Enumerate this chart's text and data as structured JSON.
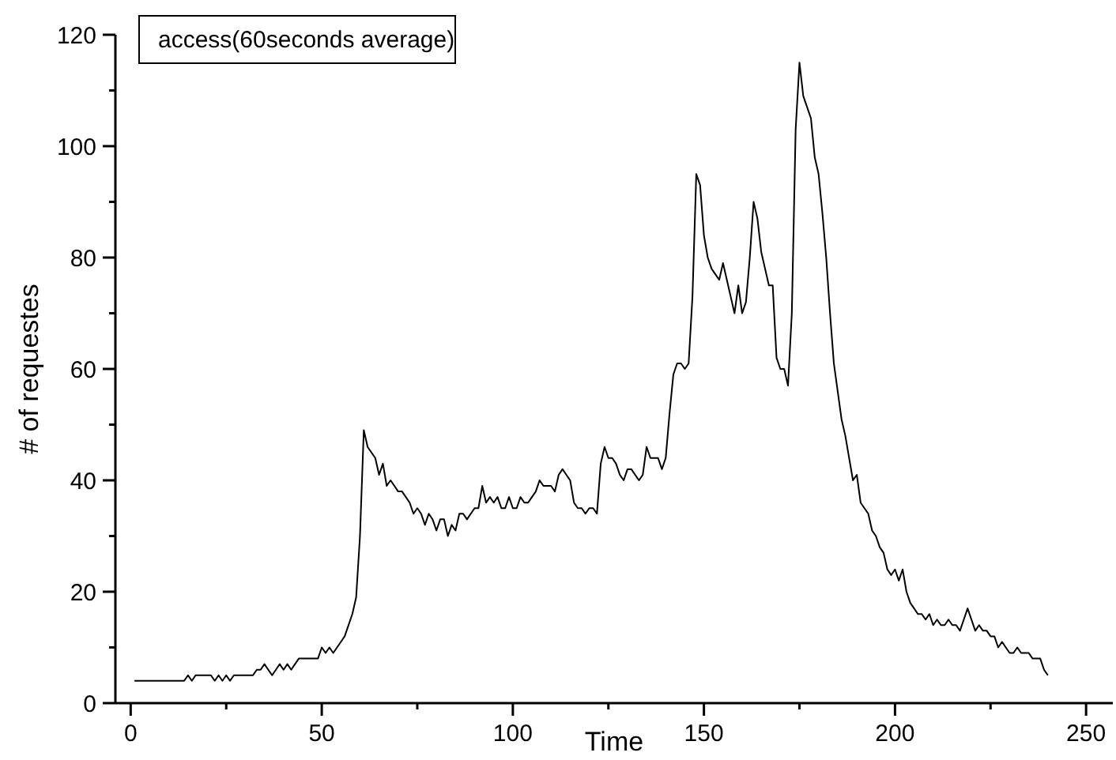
{
  "chart_data": {
    "type": "line",
    "xlabel": "Time",
    "ylabel": "# of requestes",
    "legend": "top left",
    "marker": "none",
    "line_style": "solid",
    "grid": false,
    "xlim": [
      -4,
      257
    ],
    "ylim": [
      0,
      120
    ],
    "xticks": [
      0,
      {
        "value": 25,
        "label": null
      },
      50,
      {
        "value": 75,
        "label": null
      },
      100,
      {
        "value": 125,
        "label": null
      },
      150,
      {
        "value": 175,
        "label": null
      },
      200,
      {
        "value": 225,
        "label": null
      },
      250
    ],
    "yticks": [
      0,
      {
        "value": 10,
        "label": null
      },
      20,
      {
        "value": 30,
        "label": null
      },
      40,
      {
        "value": 50,
        "label": null
      },
      60,
      {
        "value": 70,
        "label": null
      },
      80,
      {
        "value": 90,
        "label": null
      },
      100,
      {
        "value": 110,
        "label": null
      },
      120
    ],
    "series": [
      {
        "name": "access(60seconds average)",
        "color": "#000000",
        "x": [
          1,
          14,
          15,
          16,
          17,
          21,
          22,
          23,
          24,
          25,
          26,
          27,
          32,
          33,
          34,
          35,
          36,
          37,
          38,
          39,
          40,
          41,
          42,
          43,
          44,
          45,
          49,
          50,
          51,
          52,
          53,
          55,
          56,
          57,
          58,
          59,
          60,
          61,
          62,
          63,
          64,
          65,
          66,
          67,
          68,
          69,
          70,
          71,
          72,
          73,
          74,
          75,
          76,
          77,
          78,
          79,
          80,
          81,
          82,
          83,
          84,
          85,
          86,
          87,
          88,
          89,
          90,
          91,
          92,
          93,
          94,
          95,
          96,
          97,
          98,
          99,
          100,
          101,
          102,
          103,
          104,
          105,
          106,
          107,
          108,
          109,
          110,
          111,
          112,
          113,
          114,
          115,
          116,
          117,
          118,
          119,
          120,
          121,
          122,
          123,
          124,
          125,
          126,
          127,
          128,
          129,
          130,
          131,
          132,
          133,
          134,
          135,
          136,
          137,
          138,
          139,
          140,
          141,
          142,
          143,
          144,
          145,
          146,
          147,
          148,
          149,
          150,
          151,
          152,
          153,
          154,
          155,
          156,
          157,
          158,
          159,
          160,
          161,
          162,
          163,
          164,
          165,
          166,
          167,
          168,
          169,
          170,
          171,
          172,
          173,
          174,
          175,
          176,
          177,
          178,
          179,
          180,
          181,
          182,
          183,
          184,
          185,
          186,
          187,
          188,
          189,
          190,
          191,
          192,
          193,
          194,
          195,
          196,
          197,
          198,
          199,
          200,
          201,
          202,
          203,
          204,
          205,
          206,
          207,
          208,
          209,
          210,
          211,
          212,
          213,
          214,
          215,
          216,
          217,
          218,
          219,
          220,
          221,
          222,
          223,
          224,
          225,
          226,
          227,
          228,
          229,
          230,
          231,
          232,
          233,
          234,
          235,
          236,
          237,
          238,
          239,
          240
        ],
        "values": [
          4,
          4,
          5,
          4,
          5,
          5,
          4,
          5,
          4,
          5,
          4,
          5,
          5,
          6,
          6,
          7,
          6,
          5,
          6,
          7,
          6,
          7,
          6,
          7,
          8,
          8,
          8,
          10,
          9,
          10,
          9,
          11,
          12,
          14,
          16,
          19,
          30,
          49,
          46,
          45,
          44,
          41,
          43,
          39,
          40,
          39,
          38,
          38,
          37,
          36,
          34,
          35,
          34,
          32,
          34,
          33,
          31,
          33,
          33,
          30,
          32,
          31,
          34,
          34,
          33,
          34,
          35,
          35,
          39,
          36,
          37,
          36,
          37,
          35,
          35,
          37,
          35,
          35,
          37,
          36,
          36,
          37,
          38,
          40,
          39,
          39,
          39,
          38,
          41,
          42,
          41,
          40,
          36,
          35,
          35,
          34,
          35,
          35,
          34,
          43,
          46,
          44,
          44,
          43,
          41,
          40,
          42,
          42,
          41,
          40,
          41,
          46,
          44,
          44,
          44,
          42,
          44,
          52,
          59,
          61,
          61,
          60,
          61,
          73,
          95,
          93,
          84,
          80,
          78,
          77,
          76,
          79,
          76,
          73,
          70,
          75,
          70,
          72,
          80,
          90,
          87,
          81,
          78,
          75,
          75,
          62,
          60,
          60,
          57,
          70,
          103,
          115,
          109,
          107,
          105,
          98,
          95,
          88,
          80,
          70,
          61,
          56,
          51,
          48,
          44,
          40,
          41,
          36,
          35,
          34,
          31,
          30,
          28,
          27,
          24,
          23,
          24,
          22,
          24,
          20,
          18,
          17,
          16,
          16,
          15,
          16,
          14,
          15,
          14,
          14,
          15,
          14,
          14,
          13,
          15,
          17,
          15,
          13,
          14,
          13,
          13,
          12,
          12,
          10,
          11,
          10,
          9,
          9,
          10,
          9,
          9,
          9,
          8,
          8,
          8,
          6,
          5
        ]
      }
    ]
  }
}
